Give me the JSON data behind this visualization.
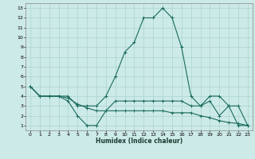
{
  "title": "",
  "xlabel": "Humidex (Indice chaleur)",
  "ylabel": "",
  "bg_color": "#cceae7",
  "grid_color": "#aad4d0",
  "line_color": "#1a6b5e",
  "xlim": [
    -0.5,
    23.5
  ],
  "ylim": [
    0.5,
    13.5
  ],
  "xticks": [
    0,
    1,
    2,
    3,
    4,
    5,
    6,
    7,
    8,
    9,
    10,
    11,
    12,
    13,
    14,
    15,
    16,
    17,
    18,
    19,
    20,
    21,
    22,
    23
  ],
  "yticks": [
    1,
    2,
    3,
    4,
    5,
    6,
    7,
    8,
    9,
    10,
    11,
    12,
    13
  ],
  "line1_x": [
    0,
    1,
    2,
    3,
    4,
    5,
    6,
    7,
    8,
    9,
    10,
    11,
    12,
    13,
    14,
    15,
    16,
    17,
    18,
    19,
    20,
    21,
    22,
    23
  ],
  "line1_y": [
    5,
    4,
    4,
    4,
    4,
    3,
    3,
    3,
    4,
    6,
    8.5,
    9.5,
    12,
    12,
    13,
    12,
    9,
    4,
    3,
    4,
    4,
    3,
    3,
    1
  ],
  "line2_x": [
    0,
    1,
    2,
    3,
    4,
    5,
    6,
    7,
    8,
    9,
    10,
    11,
    12,
    13,
    14,
    15,
    16,
    17,
    18,
    19,
    20,
    21,
    22,
    23
  ],
  "line2_y": [
    5,
    4,
    4,
    4,
    3.5,
    2,
    1,
    1,
    2.5,
    3.5,
    3.5,
    3.5,
    3.5,
    3.5,
    3.5,
    3.5,
    3.5,
    3,
    3,
    3.5,
    2,
    3,
    1,
    1
  ],
  "line3_x": [
    0,
    1,
    2,
    3,
    4,
    5,
    6,
    7,
    8,
    9,
    10,
    11,
    12,
    13,
    14,
    15,
    16,
    17,
    18,
    19,
    20,
    21,
    22,
    23
  ],
  "line3_y": [
    5,
    4,
    4,
    4,
    3.8,
    3.2,
    2.8,
    2.5,
    2.5,
    2.5,
    2.5,
    2.5,
    2.5,
    2.5,
    2.5,
    2.3,
    2.3,
    2.3,
    2.0,
    1.8,
    1.5,
    1.3,
    1.2,
    1.0
  ]
}
